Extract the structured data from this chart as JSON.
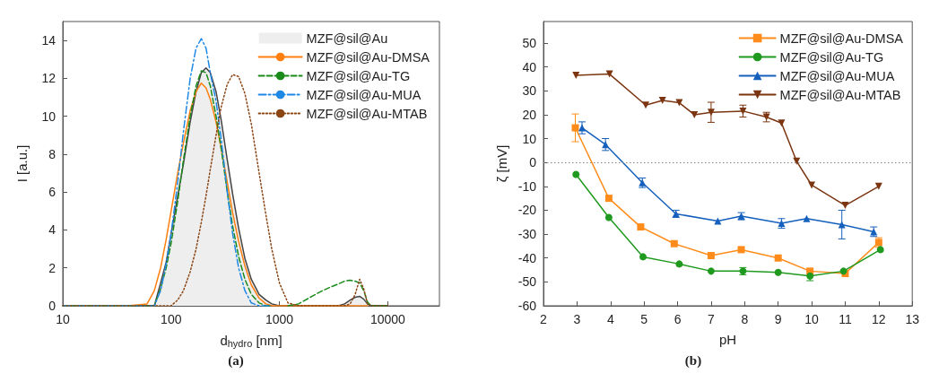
{
  "chart_data": [
    {
      "type": "line",
      "xlabel": "d$_{hydro}$ [nm]",
      "ylabel": "I [a.u.]",
      "log": "x",
      "xlim": [
        10,
        30000
      ],
      "xticks": [
        10,
        100,
        1000,
        10000
      ],
      "ylim": [
        0,
        15
      ],
      "yticks": [
        0,
        2,
        4,
        6,
        8,
        10,
        12,
        14
      ],
      "legend": "top right",
      "annotations": [
        "(a)"
      ],
      "x": [
        10,
        40,
        60,
        70,
        80,
        90,
        100,
        115,
        130,
        150,
        170,
        190,
        210,
        230,
        260,
        290,
        330,
        370,
        420,
        480,
        550,
        650,
        750,
        850,
        1000,
        1200,
        1500,
        2000,
        2500,
        3000,
        3500,
        4000,
        4500,
        5000,
        5500,
        6000,
        6500,
        7000,
        10000
      ],
      "series": [
        {
          "name": "MZF@sil@Au",
          "type": "area",
          "color": "#eeeeee",
          "values": [
            0,
            0,
            0,
            0,
            1.2,
            2.3,
            3.8,
            5.8,
            7.5,
            9.7,
            11.3,
            12.3,
            12.55,
            12.3,
            11.3,
            9.8,
            7.7,
            5.9,
            4.1,
            2.5,
            1.4,
            0.6,
            0.3,
            0.1,
            0,
            0,
            0,
            0,
            0,
            0,
            0,
            0.1,
            0.3,
            0.45,
            0.5,
            0.35,
            0.1,
            0,
            0
          ]
        },
        {
          "name": "MZF@sil@Au-DMSA",
          "color": "#ff7f0e",
          "line_style": "solid",
          "values": [
            0,
            0,
            0.1,
            0.8,
            2.0,
            3.5,
            5.0,
            7.0,
            8.6,
            10.3,
            11.3,
            11.75,
            11.5,
            10.9,
            9.7,
            8.3,
            6.5,
            4.9,
            3.4,
            2.1,
            1.1,
            0.4,
            0.1,
            0,
            0,
            0,
            0,
            0,
            0,
            0,
            0,
            0,
            0,
            0,
            0,
            0,
            0,
            null,
            null
          ]
        },
        {
          "name": "MZF@sil@Au-TG",
          "color": "#1a8a1a",
          "line_style": "dashed",
          "values": [
            0,
            0,
            0,
            0,
            0.9,
            2.0,
            3.3,
            5.5,
            7.7,
            10.0,
            11.6,
            12.4,
            12.3,
            11.6,
            10.0,
            8.3,
            6.0,
            4.2,
            2.6,
            1.4,
            0.6,
            0.15,
            0,
            0,
            null,
            0,
            0.1,
            0.5,
            0.8,
            1.0,
            1.15,
            1.3,
            1.35,
            1.3,
            1.2,
            0.8,
            0.2,
            0,
            0
          ]
        },
        {
          "name": "MZF@sil@Au-MUA",
          "color": "#1e88e5",
          "line_style": "dashdot",
          "values": [
            0,
            0,
            0,
            0,
            0.8,
            2.2,
            3.8,
            6.5,
            9.2,
            12.0,
            13.6,
            14.1,
            13.6,
            12.3,
            10.8,
            8.8,
            6.0,
            3.8,
            2.0,
            0.8,
            0.15,
            0,
            0,
            0,
            null,
            null,
            null,
            null,
            null,
            null,
            null,
            null,
            null,
            null,
            null,
            null,
            null,
            null,
            null
          ]
        },
        {
          "name": "MZF@sil@Au-MTAB",
          "color": "#8b4513",
          "line_style": "dotted",
          "values": [
            0,
            0,
            0,
            0,
            0,
            0,
            0,
            0.3,
            0.8,
            1.8,
            3.0,
            4.4,
            5.8,
            7.2,
            9.0,
            10.5,
            11.7,
            12.2,
            12.1,
            11.2,
            9.6,
            7.0,
            4.8,
            3.0,
            1.2,
            0.15,
            0,
            0,
            0,
            0,
            0,
            0,
            0.1,
            0.6,
            1.4,
            0.9,
            0.1,
            0,
            0
          ]
        }
      ]
    },
    {
      "type": "line",
      "xlabel": "pH",
      "ylabel": "ζ [mV]",
      "xlim": [
        2,
        13
      ],
      "xticks": [
        2,
        3,
        4,
        5,
        6,
        7,
        8,
        9,
        10,
        11,
        12,
        13
      ],
      "ylim": [
        -60,
        59
      ],
      "yticks": [
        -60,
        -50,
        -40,
        -30,
        -20,
        -10,
        0,
        10,
        20,
        30,
        40,
        50
      ],
      "legend": "top right",
      "line_style": "solid",
      "annotations": [
        "(b)"
      ],
      "ref_lines": [
        {
          "axis": "y",
          "value": 0,
          "color": "#888888",
          "line_style": "dotted"
        }
      ],
      "series": [
        {
          "name": "MZF@sil@Au-DMSA",
          "color": "#ff8c1a",
          "marker": "square",
          "x": [
            2.95,
            3.95,
            4.9,
            5.9,
            7,
            7.9,
            9,
            9.95,
            11,
            12
          ],
          "values": [
            14.5,
            -15,
            -27,
            -34,
            -39,
            -36.5,
            -40,
            -45.5,
            -46.5,
            -33.5
          ],
          "errors": [
            5.8,
            null,
            null,
            null,
            null,
            null,
            null,
            null,
            null,
            2
          ]
        },
        {
          "name": "MZF@sil@Au-TG",
          "color": "#1f9a1f",
          "marker": "circle",
          "x": [
            2.97,
            3.95,
            4.97,
            6.05,
            7,
            7.95,
            9,
            9.95,
            10.95,
            12.05
          ],
          "values": [
            -5,
            -23,
            -39.5,
            -42.5,
            -45.5,
            -45.5,
            -46,
            -47.5,
            -45.5,
            -36.5
          ],
          "errors": [
            null,
            null,
            null,
            null,
            null,
            1.5,
            null,
            2,
            null,
            null
          ]
        },
        {
          "name": "MZF@sil@Au-MUA",
          "color": "#1560bd",
          "marker": "triangle",
          "x": [
            3.15,
            3.85,
            4.95,
            5.95,
            7.2,
            7.9,
            9.1,
            9.85,
            10.9,
            11.85
          ],
          "values": [
            14.5,
            7.5,
            -8.5,
            -21.5,
            -24.5,
            -22.5,
            -25.5,
            -23.5,
            -26,
            -29
          ],
          "errors": [
            2.5,
            2.5,
            2,
            1.5,
            null,
            1.5,
            2,
            null,
            6,
            2
          ]
        },
        {
          "name": "MZF@sil@Au-MTAB",
          "color": "#7b3510",
          "marker": "triangle-down",
          "x": [
            2.97,
            3.97,
            5.05,
            5.55,
            6.05,
            6.5,
            7,
            7.95,
            8.65,
            9.1,
            9.55,
            10,
            11,
            12
          ],
          "values": [
            36.5,
            37,
            24,
            26,
            25,
            20,
            21,
            21.5,
            19,
            16.5,
            0.5,
            -9.5,
            -18,
            -10
          ],
          "errors": [
            null,
            null,
            null,
            null,
            null,
            null,
            4.2,
            2.5,
            2,
            null,
            null,
            null,
            null,
            null
          ]
        }
      ]
    }
  ]
}
